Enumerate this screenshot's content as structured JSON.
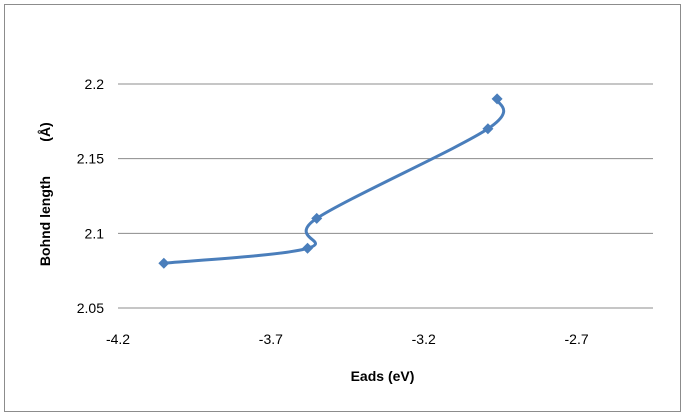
{
  "chart_data": {
    "type": "scatter",
    "title": "",
    "xlabel": "Eads (eV)",
    "ylabel": "Bohnd length",
    "ylabel_unit": "(Å)",
    "xlim": [
      -4.2,
      -2.45
    ],
    "ylim": [
      2.05,
      2.2
    ],
    "xticks": [
      -4.2,
      -3.7,
      -3.2,
      -2.7
    ],
    "xtick_labels": [
      "-4.2",
      "-3.7",
      "-3.2",
      "-2.7"
    ],
    "yticks": [
      2.05,
      2.1,
      2.15,
      2.2
    ],
    "ytick_labels": [
      "2.05",
      "2.1",
      "2.15",
      "2.2"
    ],
    "grid": "horizontal",
    "legend": "none",
    "line_style": "smoothed",
    "marker": "diamond",
    "color": "#4a7ebb",
    "series": [
      {
        "x": [
          -4.05,
          -3.58,
          -3.55,
          -2.99,
          -2.96
        ],
        "y": [
          2.08,
          2.09,
          2.11,
          2.17,
          2.19
        ]
      }
    ]
  }
}
